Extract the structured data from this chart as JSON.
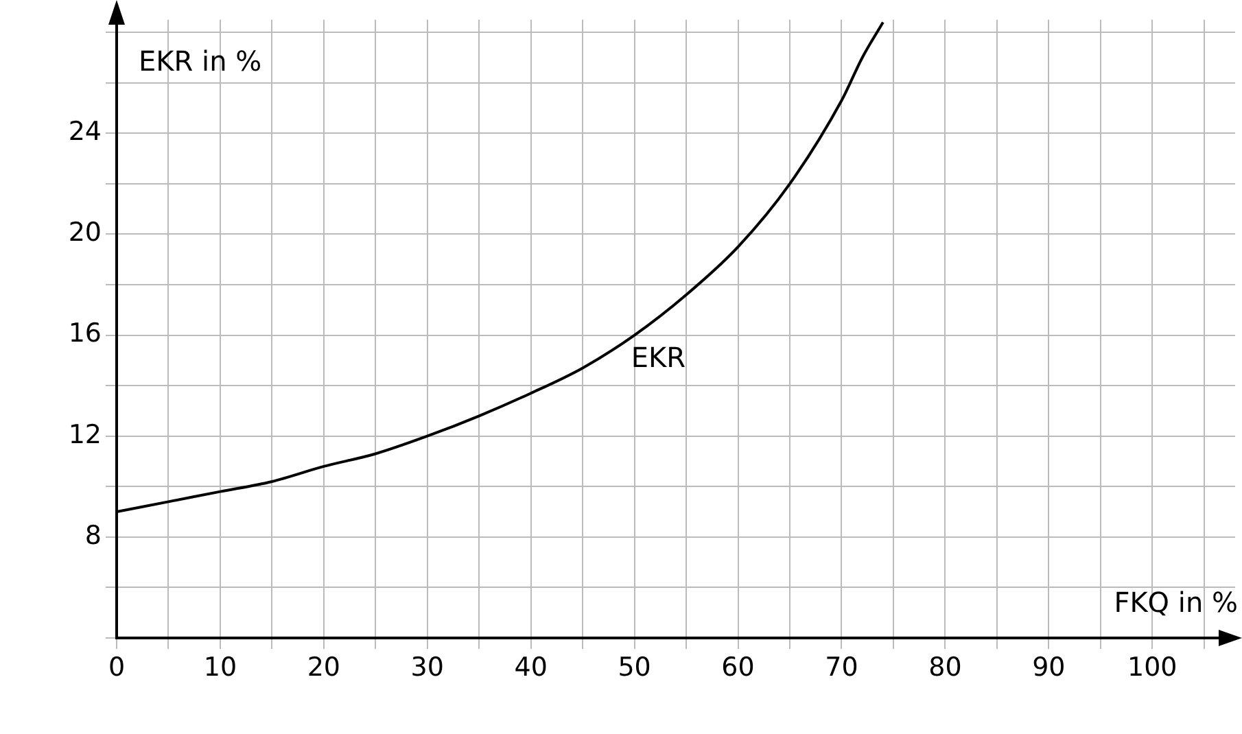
{
  "chart_data": {
    "type": "line",
    "xlabel": "FKQ in %",
    "ylabel": "EKR in %",
    "x": [
      0,
      5,
      10,
      15,
      20,
      25,
      30,
      35,
      40,
      45,
      50,
      55,
      60,
      65,
      70,
      72,
      74
    ],
    "series": [
      {
        "color": "#000000",
        "values": [
          9.0,
          9.4,
          9.8,
          10.2,
          10.8,
          11.3,
          12.0,
          12.8,
          13.7,
          14.7,
          16.0,
          17.6,
          19.5,
          22.0,
          25.3,
          27.0,
          28.4
        ]
      }
    ],
    "xlim": [
      0,
      108
    ],
    "ylim": [
      4,
      28.5
    ],
    "xticks": [
      {
        "value": 0,
        "label": "0"
      },
      {
        "value": 5,
        "label": null
      },
      10,
      {
        "value": 15,
        "label": null
      },
      20,
      {
        "value": 25,
        "label": null
      },
      30,
      {
        "value": 35,
        "label": null
      },
      40,
      {
        "value": 45,
        "label": null
      },
      50,
      {
        "value": 55,
        "label": null
      },
      60,
      {
        "value": 65,
        "label": null
      },
      70,
      {
        "value": 75,
        "label": null
      },
      80,
      {
        "value": 85,
        "label": null
      },
      90,
      {
        "value": 95,
        "label": null
      },
      100,
      {
        "value": 105,
        "label": null
      }
    ],
    "yticks": [
      {
        "value": 4,
        "label": null
      },
      {
        "value": 6,
        "label": null
      },
      8,
      {
        "value": 10,
        "label": null
      },
      12,
      {
        "value": 14,
        "label": null
      },
      16,
      {
        "value": 18,
        "label": null
      },
      20,
      {
        "value": 22,
        "label": null
      },
      24,
      {
        "value": 26,
        "label": null
      },
      {
        "value": 28,
        "label": null
      }
    ],
    "annotations": [
      "EKR"
    ],
    "grid": true,
    "legend": false,
    "marker": "none",
    "line_style": "solid"
  }
}
